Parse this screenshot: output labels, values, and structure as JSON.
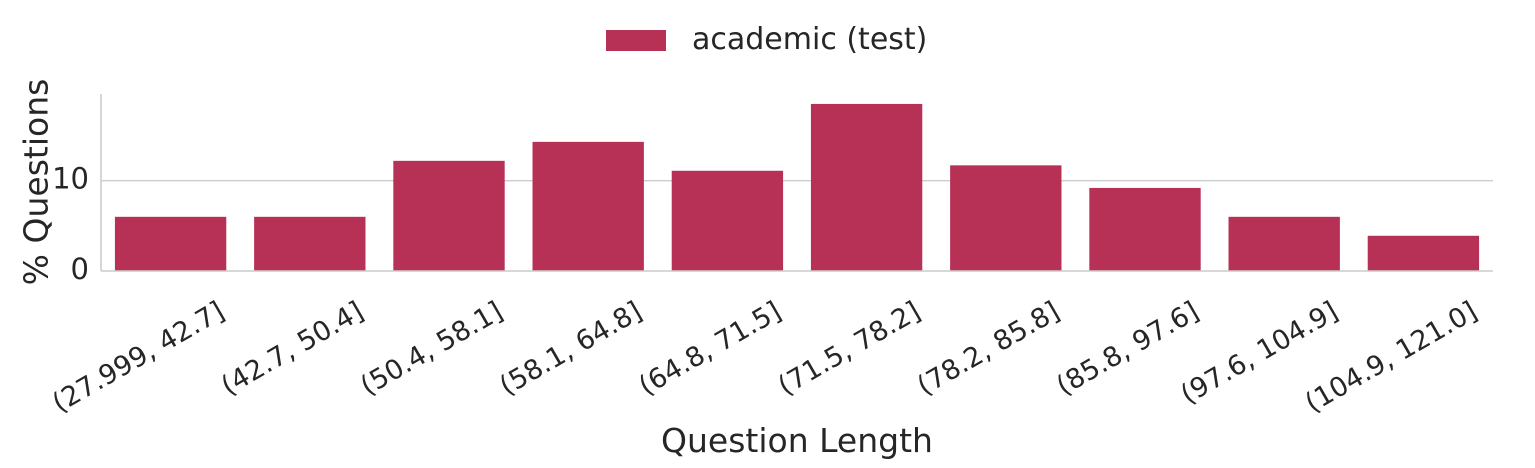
{
  "chart_data": {
    "type": "bar",
    "title": "",
    "xlabel": "Question Length",
    "ylabel": "% Questions",
    "categories": [
      "(27.999, 42.7]",
      "(42.7, 50.4]",
      "(50.4, 58.1]",
      "(58.1, 64.8]",
      "(64.8, 71.5]",
      "(71.5, 78.2]",
      "(78.2, 85.8]",
      "(85.8, 97.6]",
      "(97.6, 104.9]",
      "(104.9, 121.0]"
    ],
    "series": [
      {
        "name": "academic (test)",
        "color": "#b73157",
        "values": [
          6.0,
          6.0,
          12.2,
          14.3,
          11.1,
          18.5,
          11.7,
          9.2,
          6.0,
          3.9
        ]
      }
    ],
    "yticks": [
      0,
      10
    ],
    "ylim": [
      0,
      19.6
    ],
    "grid": "horizontal",
    "legend": "top-center"
  }
}
